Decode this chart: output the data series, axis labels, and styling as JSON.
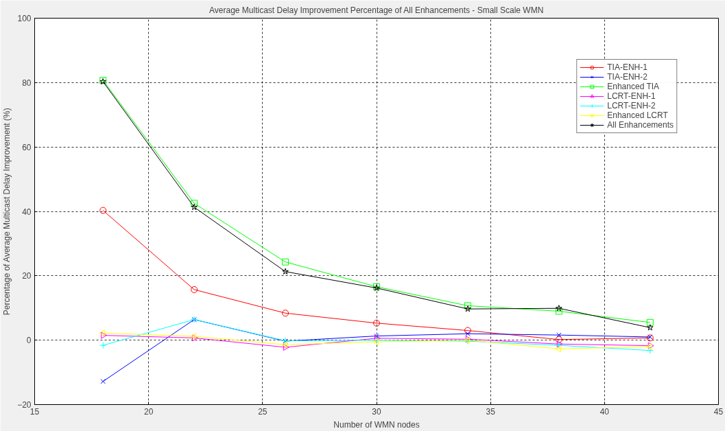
{
  "chart_data": {
    "type": "line",
    "title": "Average Multicast Delay Improvement Percentage of All Enhancements - Small Scale WMN",
    "xlabel": "Number of WMN nodes",
    "ylabel": "Percentage of Average Multicast Delay Improvement (%)",
    "x": [
      18,
      22,
      26,
      30,
      34,
      38,
      42
    ],
    "xlim": [
      15,
      45
    ],
    "xticks": [
      15,
      20,
      25,
      30,
      35,
      40,
      45
    ],
    "ylim": [
      -20,
      100
    ],
    "yticks": [
      -20,
      0,
      20,
      40,
      60,
      80,
      100
    ],
    "grid": true,
    "legend": "top right",
    "line_style": "solid",
    "series": [
      {
        "name": "TIA-ENH-1",
        "color": "#ff0000",
        "marker": "circle",
        "values": [
          40.3,
          15.7,
          8.4,
          5.3,
          3.0,
          0.2,
          0.7
        ]
      },
      {
        "name": "TIA-ENH-2",
        "color": "#0000ff",
        "marker": "x",
        "values": [
          -12.8,
          6.4,
          -0.3,
          1.3,
          2.0,
          1.6,
          1.0
        ]
      },
      {
        "name": "Enhanced TIA",
        "color": "#00ff00",
        "marker": "square",
        "values": [
          80.7,
          42.5,
          24.3,
          16.6,
          10.7,
          9.0,
          5.5
        ]
      },
      {
        "name": "LCRT-ENH-1",
        "color": "#ff00ff",
        "marker": "triangle_right",
        "values": [
          1.5,
          0.7,
          -2.2,
          0.6,
          0.3,
          -1.2,
          -1.7
        ]
      },
      {
        "name": "LCRT-ENH-2",
        "color": "#00ffff",
        "marker": "cross",
        "values": [
          -1.6,
          6.4,
          -0.2,
          0.0,
          -0.3,
          -1.6,
          -3.2
        ]
      },
      {
        "name": "Enhanced LCRT",
        "color": "#ffff00",
        "marker": "triangle_left",
        "values": [
          2.2,
          1.2,
          -1.4,
          -0.5,
          0.0,
          -2.7,
          -2.0
        ]
      },
      {
        "name": "All Enhancements",
        "color": "#000000",
        "marker": "star",
        "values": [
          80.3,
          41.3,
          21.3,
          16.2,
          9.7,
          9.9,
          3.9
        ]
      }
    ]
  }
}
